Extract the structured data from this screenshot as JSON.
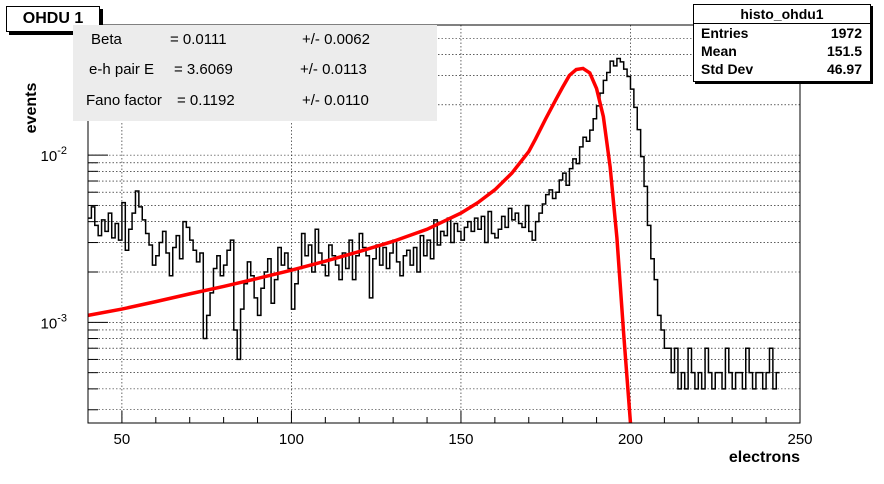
{
  "title_box": "OHDU 1",
  "fit_params": [
    {
      "name": "Beta",
      "value": "= 0.0111",
      "error": "+/- 0.0062"
    },
    {
      "name": "e-h pair E",
      "value": "= 3.6069",
      "error": "+/- 0.0113"
    },
    {
      "name": "Fano factor",
      "value": "= 0.1192",
      "error": "+/- 0.0110"
    }
  ],
  "stats": {
    "title": "histo_ohdu1",
    "rows": [
      {
        "key": "Entries",
        "value": "1972"
      },
      {
        "key": "Mean",
        "value": "151.5"
      },
      {
        "key": "Std Dev",
        "value": "46.97"
      }
    ]
  },
  "colors": {
    "histogram": "#000000",
    "fit": "#ff0000",
    "fit_box": "#ececec"
  },
  "chart_data": {
    "type": "line",
    "xlabel": "electrons",
    "ylabel": "events",
    "xlim": [
      40,
      250
    ],
    "ylim": [
      0.00025,
      0.06
    ],
    "yscale": "log",
    "grid": true,
    "x_ticks": [
      50,
      100,
      150,
      200,
      250
    ],
    "y_ticks": [
      {
        "value": 0.001,
        "label": "10^-3"
      },
      {
        "value": 0.01,
        "label": "10^-2"
      }
    ],
    "series": [
      {
        "kind": "histogram",
        "bin_start": 40,
        "bin_width": 1,
        "values": [
          0.0042,
          0.0049,
          0.0038,
          0.0033,
          0.0041,
          0.0035,
          0.0045,
          0.0032,
          0.0039,
          0.0031,
          0.0052,
          0.0027,
          0.0036,
          0.0045,
          0.0061,
          0.0049,
          0.0041,
          0.0034,
          0.0029,
          0.0022,
          0.0025,
          0.003,
          0.0035,
          0.0026,
          0.0019,
          0.0028,
          0.0033,
          0.0024,
          0.004,
          0.0037,
          0.0031,
          0.0027,
          0.0023,
          0.0026,
          0.0008,
          0.0011,
          0.0015,
          0.0021,
          0.0025,
          0.0019,
          0.0022,
          0.0027,
          0.0031,
          0.0009,
          0.0006,
          0.0012,
          0.0017,
          0.0023,
          0.0019,
          0.0014,
          0.0011,
          0.0016,
          0.002,
          0.0024,
          0.0013,
          0.0018,
          0.0028,
          0.0022,
          0.0026,
          0.0021,
          0.0012,
          0.0017,
          0.0021,
          0.0034,
          0.0025,
          0.0029,
          0.002,
          0.0036,
          0.0026,
          0.0022,
          0.0019,
          0.0029,
          0.0025,
          0.0022,
          0.0018,
          0.0026,
          0.0021,
          0.0031,
          0.0018,
          0.0025,
          0.0034,
          0.0028,
          0.0025,
          0.0014,
          0.0024,
          0.0029,
          0.0022,
          0.0028,
          0.0021,
          0.0026,
          0.0031,
          0.0023,
          0.0019,
          0.0025,
          0.0027,
          0.0022,
          0.0028,
          0.002,
          0.0033,
          0.0025,
          0.0031,
          0.0024,
          0.0041,
          0.0029,
          0.0035,
          0.0033,
          0.0042,
          0.003,
          0.0039,
          0.0035,
          0.0031,
          0.0037,
          0.004,
          0.0035,
          0.0042,
          0.0036,
          0.0043,
          0.003,
          0.0046,
          0.0034,
          0.0032,
          0.0036,
          0.0043,
          0.0037,
          0.0048,
          0.0041,
          0.0045,
          0.0039,
          0.0037,
          0.005,
          0.0035,
          0.0031,
          0.004,
          0.0045,
          0.0051,
          0.0058,
          0.0062,
          0.0055,
          0.006,
          0.0071,
          0.0078,
          0.0066,
          0.0083,
          0.0095,
          0.0089,
          0.0112,
          0.0128,
          0.0121,
          0.0141,
          0.0165,
          0.0197,
          0.0235,
          0.028,
          0.0312,
          0.0365,
          0.0342,
          0.0378,
          0.0361,
          0.0327,
          0.0295,
          0.0248,
          0.0193,
          0.0142,
          0.0098,
          0.0065,
          0.0038,
          0.0024,
          0.0018,
          0.0011,
          0.0009,
          0.0007,
          0.0007,
          0.0005,
          0.0007,
          0.0004,
          0.0005,
          0.0004,
          0.0007,
          0.0005,
          0.0004,
          0.0005,
          0.0004,
          0.0007,
          0.0005,
          0.0004,
          0.0005,
          0.0005,
          0.0004,
          0.0007,
          0.0005,
          0.0004,
          0.0005,
          0.0005,
          0.0004,
          0.0007,
          0.0005,
          0.0004,
          0.0005,
          0.0005,
          0.0004,
          0.0005,
          0.0007,
          0.0004,
          0.0005
        ]
      },
      {
        "kind": "fit",
        "x": [
          40,
          50,
          60,
          70,
          80,
          90,
          100,
          110,
          120,
          130,
          140,
          150,
          155,
          160,
          165,
          170,
          172,
          175,
          178,
          180,
          182,
          184,
          186,
          188,
          190,
          192,
          194,
          196,
          198,
          200
        ],
        "y": [
          0.0011,
          0.0012,
          0.00133,
          0.00148,
          0.00164,
          0.00183,
          0.00205,
          0.00232,
          0.00265,
          0.00305,
          0.0036,
          0.0045,
          0.0052,
          0.0062,
          0.0078,
          0.0105,
          0.0125,
          0.0165,
          0.0215,
          0.0255,
          0.03,
          0.0325,
          0.033,
          0.031,
          0.025,
          0.017,
          0.0085,
          0.0032,
          0.00085,
          0.00025
        ]
      }
    ]
  }
}
